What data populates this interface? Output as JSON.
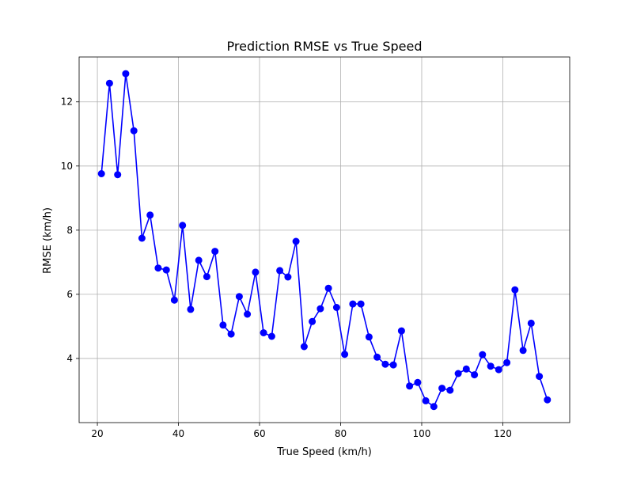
{
  "chart_data": {
    "type": "line",
    "title": "Prediction RMSE vs True Speed",
    "xlabel": "True Speed (km/h)",
    "ylabel": "RMSE (km/h)",
    "xlim": [
      15.5,
      136.5
    ],
    "ylim": [
      2.0,
      13.4
    ],
    "x_ticks": [
      20,
      40,
      60,
      80,
      100,
      120
    ],
    "y_ticks": [
      4,
      6,
      8,
      10,
      12
    ],
    "grid": true,
    "line_color": "#0000ff",
    "marker_color": "#0000ff",
    "x": [
      21,
      23,
      25,
      27,
      29,
      31,
      33,
      35,
      37,
      39,
      41,
      43,
      45,
      47,
      49,
      51,
      53,
      55,
      57,
      59,
      61,
      63,
      65,
      67,
      69,
      71,
      73,
      75,
      77,
      79,
      81,
      83,
      85,
      87,
      89,
      91,
      93,
      95,
      97,
      99,
      101,
      103,
      105,
      107,
      109,
      111,
      113,
      115,
      117,
      119,
      121,
      123,
      125,
      127,
      129,
      131
    ],
    "y": [
      9.76,
      12.58,
      9.73,
      12.88,
      11.1,
      7.75,
      8.47,
      6.82,
      6.76,
      5.82,
      8.15,
      5.53,
      7.06,
      6.55,
      7.34,
      5.04,
      4.76,
      5.93,
      5.38,
      6.69,
      4.8,
      4.69,
      6.74,
      6.54,
      7.65,
      4.37,
      5.15,
      5.55,
      6.19,
      5.59,
      4.13,
      5.7,
      5.7,
      4.67,
      4.04,
      3.82,
      3.8,
      4.86,
      3.14,
      3.25,
      2.68,
      2.5,
      3.07,
      3.01,
      3.53,
      3.67,
      3.49,
      4.12,
      3.76,
      3.65,
      3.87,
      6.14,
      4.25,
      5.1,
      3.44,
      2.71
    ]
  }
}
